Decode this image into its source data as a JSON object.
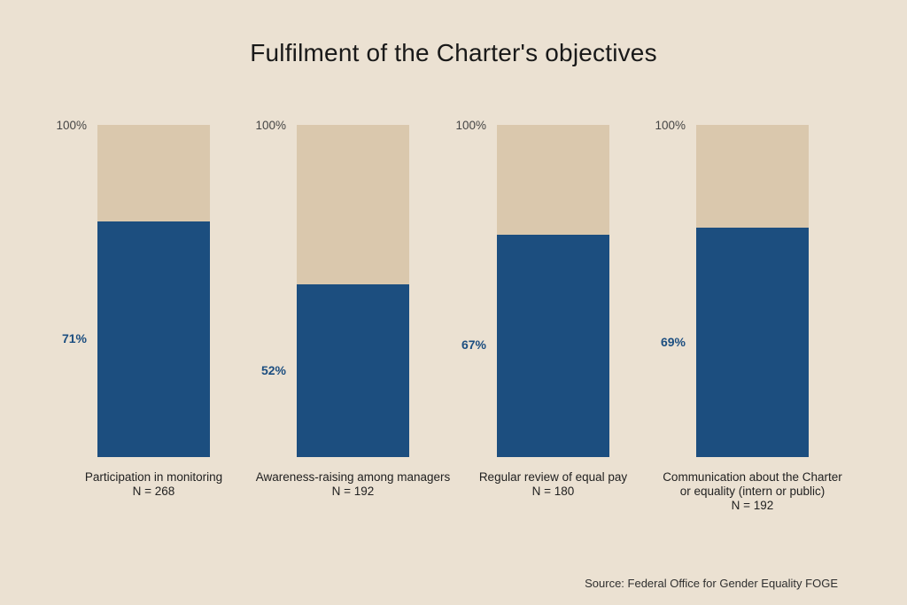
{
  "source_note": "Source: Federal Office for Gender Equality FOGE",
  "colors": {
    "page_background": "#ebe1d2",
    "bar_track": "#dac8ad",
    "bar_fill": "#1c4e7f",
    "value_label": "#1c4e80",
    "axis_label": "#454545",
    "category_label": "#212121",
    "title_text": "#191919",
    "source_text": "#2f2f2f"
  },
  "chart_data": {
    "type": "bar",
    "title": "Fulfilment of the Charter's objectives",
    "xlabel": "",
    "ylabel": "",
    "ylim": [
      0,
      100
    ],
    "top_tick_label": "100%",
    "value_suffix": "%",
    "grid": false,
    "legend": false,
    "categories": [
      "Participation in monitoring",
      "Awareness-raising among managers",
      "Regular review of equal pay",
      "Communication about the Charter\nor equality (intern or public)"
    ],
    "n_labels": [
      "N = 268",
      "N = 192",
      "N = 180",
      "N = 192"
    ],
    "values": [
      71,
      52,
      67,
      69
    ]
  }
}
